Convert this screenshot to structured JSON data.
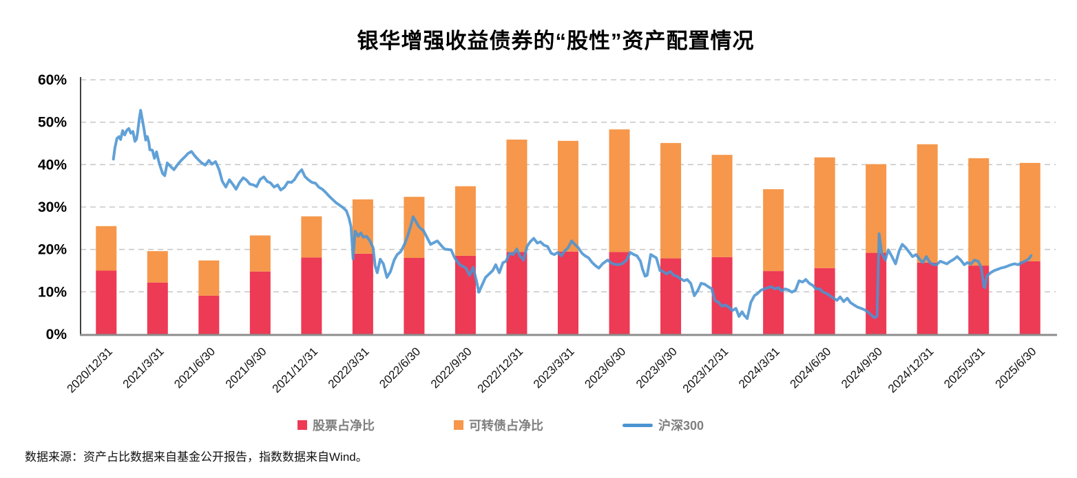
{
  "title": "银华增强收益债券的“股性”资产配置情况",
  "source": "数据来源：资产占比数据来自基金公开报告，指数数据来自Wind。",
  "legend": [
    {
      "label": "股票占净比",
      "color": "#ed3a55",
      "type": "bar"
    },
    {
      "label": "可转债占净比",
      "color": "#f6974b",
      "type": "bar"
    },
    {
      "label": "沪深300",
      "color": "#4b94d1",
      "type": "line"
    }
  ],
  "colors": {
    "stock": "#ed3a55",
    "convertible": "#f6974b",
    "index_line": "#4b94d1",
    "grid": "#c8c8c8",
    "y_axis": "#404040",
    "baseline": "#8c8c8c"
  },
  "chart_data": {
    "type": "combo",
    "bar_mode": "stacked",
    "grid": "dashed-horizontal",
    "legend_position": "bottom",
    "ylim": [
      0,
      60
    ],
    "yticks": [
      0,
      10,
      20,
      30,
      40,
      50,
      60
    ],
    "ytick_labels": [
      "0%",
      "10%",
      "20%",
      "30%",
      "40%",
      "50%",
      "60%"
    ],
    "xlabel": "",
    "ylabel": "",
    "categories": [
      "2020/12/31",
      "2021/3/31",
      "2021/6/30",
      "2021/9/30",
      "2021/12/31",
      "2022/3/31",
      "2022/6/30",
      "2022/9/30",
      "2022/12/31",
      "2023/3/31",
      "2023/6/30",
      "2023/9/30",
      "2023/12/31",
      "2024/3/31",
      "2024/6/30",
      "2024/9/30",
      "2024/12/31",
      "2025/3/31",
      "2025/6/30"
    ],
    "series": [
      {
        "name": "股票占净比",
        "type": "bar",
        "color": "#ed3a55",
        "unit": "%",
        "values": [
          15.0,
          12.2,
          9.1,
          14.8,
          18.1,
          19.0,
          18.0,
          18.5,
          19.4,
          19.5,
          19.4,
          17.9,
          18.2,
          14.9,
          15.6,
          19.2,
          16.9,
          16.2,
          17.2
        ]
      },
      {
        "name": "可转债占净比",
        "type": "bar",
        "color": "#f6974b",
        "unit": "%",
        "values": [
          10.5,
          7.4,
          8.3,
          8.5,
          9.7,
          12.8,
          14.4,
          16.4,
          26.5,
          26.1,
          28.9,
          27.2,
          24.1,
          19.3,
          26.1,
          20.9,
          27.9,
          25.3,
          23.2
        ]
      },
      {
        "name": "沪深300",
        "type": "line",
        "color": "#4b94d1",
        "unit": "%",
        "x_unit": "quarter_index_from_2020_12_31",
        "points": [
          [
            0.14,
            41.3
          ],
          [
            0.17,
            44.0
          ],
          [
            0.21,
            46.2
          ],
          [
            0.25,
            46.6
          ],
          [
            0.28,
            45.9
          ],
          [
            0.32,
            48.0
          ],
          [
            0.36,
            47.0
          ],
          [
            0.4,
            48.1
          ],
          [
            0.44,
            48.5
          ],
          [
            0.48,
            47.4
          ],
          [
            0.52,
            47.8
          ],
          [
            0.56,
            45.5
          ],
          [
            0.59,
            46.0
          ],
          [
            0.61,
            47.4
          ],
          [
            0.64,
            50.5
          ],
          [
            0.67,
            52.8
          ],
          [
            0.69,
            51.5
          ],
          [
            0.73,
            48.8
          ],
          [
            0.77,
            45.8
          ],
          [
            0.8,
            46.6
          ],
          [
            0.83,
            45.3
          ],
          [
            0.85,
            43.5
          ],
          [
            0.9,
            43.4
          ],
          [
            0.94,
            41.5
          ],
          [
            0.98,
            43.0
          ],
          [
            1.02,
            40.9
          ],
          [
            1.06,
            39.3
          ],
          [
            1.1,
            37.9
          ],
          [
            1.14,
            37.4
          ],
          [
            1.19,
            40.4
          ],
          [
            1.26,
            39.5
          ],
          [
            1.32,
            38.8
          ],
          [
            1.39,
            40.0
          ],
          [
            1.46,
            41.0
          ],
          [
            1.53,
            41.8
          ],
          [
            1.59,
            42.6
          ],
          [
            1.66,
            43.1
          ],
          [
            1.73,
            42.0
          ],
          [
            1.79,
            41.2
          ],
          [
            1.86,
            40.4
          ],
          [
            1.93,
            39.9
          ],
          [
            2.0,
            41.0
          ],
          [
            2.06,
            40.1
          ],
          [
            2.13,
            40.7
          ],
          [
            2.2,
            38.8
          ],
          [
            2.26,
            36.1
          ],
          [
            2.33,
            34.7
          ],
          [
            2.4,
            36.4
          ],
          [
            2.47,
            35.3
          ],
          [
            2.53,
            34.2
          ],
          [
            2.6,
            35.8
          ],
          [
            2.67,
            36.9
          ],
          [
            2.73,
            36.4
          ],
          [
            2.8,
            35.4
          ],
          [
            2.87,
            35.2
          ],
          [
            2.93,
            34.8
          ],
          [
            3.0,
            36.5
          ],
          [
            3.07,
            37.1
          ],
          [
            3.14,
            36.0
          ],
          [
            3.2,
            35.7
          ],
          [
            3.27,
            34.7
          ],
          [
            3.34,
            35.2
          ],
          [
            3.4,
            34.0
          ],
          [
            3.47,
            34.6
          ],
          [
            3.54,
            35.9
          ],
          [
            3.61,
            35.8
          ],
          [
            3.67,
            36.5
          ],
          [
            3.74,
            37.9
          ],
          [
            3.81,
            38.8
          ],
          [
            3.87,
            37.2
          ],
          [
            3.94,
            36.4
          ],
          [
            4.01,
            35.8
          ],
          [
            4.08,
            35.6
          ],
          [
            4.14,
            34.7
          ],
          [
            4.21,
            34.2
          ],
          [
            4.28,
            33.4
          ],
          [
            4.34,
            32.6
          ],
          [
            4.41,
            31.8
          ],
          [
            4.48,
            31.0
          ],
          [
            4.55,
            30.4
          ],
          [
            4.61,
            29.9
          ],
          [
            4.68,
            29.1
          ],
          [
            4.73,
            27.4
          ],
          [
            4.77,
            25.3
          ],
          [
            4.81,
            17.8
          ],
          [
            4.85,
            24.3
          ],
          [
            4.91,
            23.1
          ],
          [
            4.96,
            23.9
          ],
          [
            5.01,
            22.9
          ],
          [
            5.07,
            23.1
          ],
          [
            5.14,
            22.0
          ],
          [
            5.2,
            20.4
          ],
          [
            5.24,
            16.1
          ],
          [
            5.28,
            14.5
          ],
          [
            5.34,
            17.7
          ],
          [
            5.4,
            16.6
          ],
          [
            5.47,
            13.4
          ],
          [
            5.54,
            14.8
          ],
          [
            5.61,
            17.5
          ],
          [
            5.67,
            18.8
          ],
          [
            5.74,
            19.5
          ],
          [
            5.81,
            21.2
          ],
          [
            5.87,
            23.0
          ],
          [
            5.94,
            25.8
          ],
          [
            5.98,
            27.7
          ],
          [
            6.02,
            26.9
          ],
          [
            6.09,
            25.4
          ],
          [
            6.16,
            24.6
          ],
          [
            6.18,
            24.5
          ],
          [
            6.32,
            21.2
          ],
          [
            6.45,
            22.0
          ],
          [
            6.59,
            20.1
          ],
          [
            6.72,
            19.9
          ],
          [
            6.79,
            18.0
          ],
          [
            6.89,
            16.4
          ],
          [
            7.01,
            15.6
          ],
          [
            7.08,
            13.9
          ],
          [
            7.15,
            15.8
          ],
          [
            7.22,
            12.3
          ],
          [
            7.26,
            9.9
          ],
          [
            7.32,
            11.5
          ],
          [
            7.39,
            13.4
          ],
          [
            7.46,
            14.2
          ],
          [
            7.53,
            15.0
          ],
          [
            7.59,
            16.4
          ],
          [
            7.66,
            14.5
          ],
          [
            7.73,
            16.9
          ],
          [
            7.79,
            17.2
          ],
          [
            7.86,
            19.1
          ],
          [
            7.93,
            18.8
          ],
          [
            8.0,
            20.1
          ],
          [
            8.06,
            18.5
          ],
          [
            8.13,
            17.5
          ],
          [
            8.2,
            20.7
          ],
          [
            8.26,
            21.8
          ],
          [
            8.33,
            22.6
          ],
          [
            8.4,
            21.5
          ],
          [
            8.46,
            21.8
          ],
          [
            8.53,
            21.0
          ],
          [
            8.6,
            20.7
          ],
          [
            8.67,
            19.1
          ],
          [
            8.73,
            18.8
          ],
          [
            8.8,
            19.3
          ],
          [
            8.87,
            18.5
          ],
          [
            8.93,
            19.6
          ],
          [
            9.0,
            20.4
          ],
          [
            9.07,
            22.0
          ],
          [
            9.13,
            21.2
          ],
          [
            9.2,
            20.4
          ],
          [
            9.27,
            19.1
          ],
          [
            9.33,
            18.5
          ],
          [
            9.4,
            18.0
          ],
          [
            9.47,
            16.9
          ],
          [
            9.54,
            16.1
          ],
          [
            9.6,
            15.6
          ],
          [
            9.67,
            16.6
          ],
          [
            9.77,
            17.5
          ],
          [
            9.83,
            16.9
          ],
          [
            9.87,
            16.6
          ],
          [
            9.97,
            16.4
          ],
          [
            10.05,
            16.6
          ],
          [
            10.14,
            17.5
          ],
          [
            10.21,
            19.3
          ],
          [
            10.28,
            18.8
          ],
          [
            10.34,
            18.5
          ],
          [
            10.41,
            17.2
          ],
          [
            10.45,
            15.3
          ],
          [
            10.5,
            13.7
          ],
          [
            10.54,
            13.9
          ],
          [
            10.61,
            18.8
          ],
          [
            10.72,
            18.0
          ],
          [
            10.79,
            15.0
          ],
          [
            10.85,
            14.8
          ],
          [
            10.92,
            14.2
          ],
          [
            10.99,
            14.8
          ],
          [
            11.06,
            13.9
          ],
          [
            11.12,
            13.7
          ],
          [
            11.19,
            13.1
          ],
          [
            11.26,
            12.6
          ],
          [
            11.32,
            12.9
          ],
          [
            11.39,
            12.0
          ],
          [
            11.46,
            9.1
          ],
          [
            11.53,
            10.4
          ],
          [
            11.59,
            12.0
          ],
          [
            11.66,
            11.8
          ],
          [
            11.73,
            11.2
          ],
          [
            11.8,
            10.7
          ],
          [
            11.86,
            8.0
          ],
          [
            11.93,
            7.5
          ],
          [
            12.0,
            6.6
          ],
          [
            12.06,
            6.9
          ],
          [
            12.13,
            6.4
          ],
          [
            12.2,
            5.6
          ],
          [
            12.27,
            6.1
          ],
          [
            12.33,
            4.2
          ],
          [
            12.39,
            5.3
          ],
          [
            12.43,
            4.5
          ],
          [
            12.49,
            3.7
          ],
          [
            12.56,
            7.5
          ],
          [
            12.63,
            9.1
          ],
          [
            12.69,
            9.6
          ],
          [
            12.76,
            10.4
          ],
          [
            12.83,
            10.7
          ],
          [
            12.9,
            11.0
          ],
          [
            12.96,
            11.2
          ],
          [
            13.03,
            10.7
          ],
          [
            13.1,
            11.0
          ],
          [
            13.16,
            10.2
          ],
          [
            13.23,
            10.7
          ],
          [
            13.3,
            10.4
          ],
          [
            13.36,
            9.9
          ],
          [
            13.43,
            10.4
          ],
          [
            13.5,
            12.6
          ],
          [
            13.57,
            12.3
          ],
          [
            13.63,
            12.9
          ],
          [
            13.7,
            12.0
          ],
          [
            13.77,
            11.5
          ],
          [
            13.83,
            10.7
          ],
          [
            13.9,
            10.7
          ],
          [
            13.97,
            9.9
          ],
          [
            14.04,
            9.6
          ],
          [
            14.1,
            9.1
          ],
          [
            14.17,
            8.5
          ],
          [
            14.24,
            8.0
          ],
          [
            14.3,
            8.8
          ],
          [
            14.37,
            7.7
          ],
          [
            14.44,
            8.5
          ],
          [
            14.5,
            7.5
          ],
          [
            14.57,
            6.9
          ],
          [
            14.64,
            6.4
          ],
          [
            14.71,
            6.1
          ],
          [
            14.77,
            5.8
          ],
          [
            14.84,
            5.3
          ],
          [
            14.91,
            4.5
          ],
          [
            14.97,
            3.9
          ],
          [
            15.02,
            4.2
          ],
          [
            15.06,
            23.7
          ],
          [
            15.11,
            19.1
          ],
          [
            15.18,
            17.5
          ],
          [
            15.24,
            19.9
          ],
          [
            15.31,
            18.3
          ],
          [
            15.38,
            16.6
          ],
          [
            15.45,
            19.6
          ],
          [
            15.51,
            21.2
          ],
          [
            15.58,
            20.4
          ],
          [
            15.65,
            19.3
          ],
          [
            15.71,
            18.3
          ],
          [
            15.78,
            18.8
          ],
          [
            15.85,
            17.7
          ],
          [
            15.91,
            16.9
          ],
          [
            15.98,
            18.3
          ],
          [
            16.05,
            16.9
          ],
          [
            16.12,
            16.4
          ],
          [
            16.18,
            16.4
          ],
          [
            16.25,
            17.2
          ],
          [
            16.32,
            16.9
          ],
          [
            16.38,
            16.6
          ],
          [
            16.45,
            17.2
          ],
          [
            16.52,
            17.7
          ],
          [
            16.58,
            18.3
          ],
          [
            16.65,
            17.5
          ],
          [
            16.72,
            16.4
          ],
          [
            16.78,
            16.9
          ],
          [
            16.85,
            16.6
          ],
          [
            16.92,
            17.5
          ],
          [
            16.99,
            17.2
          ],
          [
            17.05,
            15.8
          ],
          [
            17.1,
            11.2
          ],
          [
            17.12,
            11.0
          ],
          [
            17.16,
            13.7
          ],
          [
            17.23,
            14.5
          ],
          [
            17.3,
            15.0
          ],
          [
            17.37,
            15.3
          ],
          [
            17.43,
            15.6
          ],
          [
            17.5,
            15.8
          ],
          [
            17.57,
            16.1
          ],
          [
            17.63,
            16.4
          ],
          [
            17.7,
            16.6
          ],
          [
            17.77,
            16.4
          ],
          [
            17.84,
            16.9
          ],
          [
            17.9,
            17.2
          ],
          [
            17.97,
            17.7
          ],
          [
            18.02,
            18.5
          ]
        ]
      }
    ]
  }
}
